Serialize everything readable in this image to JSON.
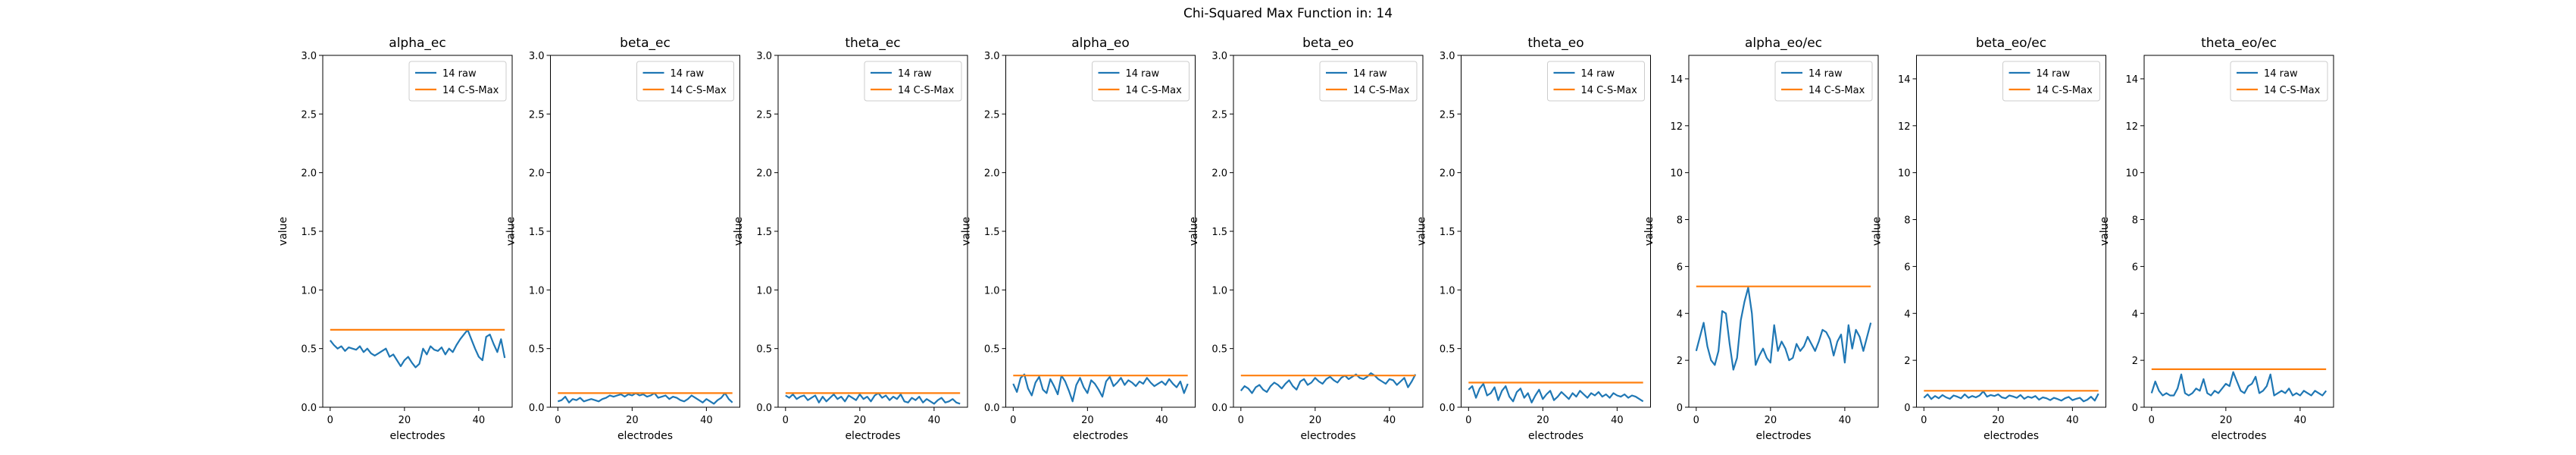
{
  "suptitle": "Chi-Squared Max Function in: 14",
  "colors": {
    "raw": "#1f77b4",
    "max": "#ff7f0e"
  },
  "chart_data": [
    {
      "type": "line",
      "title": "alpha_ec",
      "xlabel": "electrodes",
      "ylabel": "value",
      "xlim": [
        -2,
        49
      ],
      "ylim": [
        0,
        3.0
      ],
      "xticks": [
        0,
        20,
        40
      ],
      "yticks": [
        0.0,
        0.5,
        1.0,
        1.5,
        2.0,
        2.5,
        3.0
      ],
      "ytick_labels": [
        "0.0",
        "0.5",
        "1.0",
        "1.5",
        "2.0",
        "2.5",
        "3.0"
      ],
      "legend": "upper right",
      "series": [
        {
          "name": "14 raw",
          "y": [
            0.57,
            0.53,
            0.5,
            0.52,
            0.48,
            0.51,
            0.5,
            0.49,
            0.52,
            0.47,
            0.5,
            0.46,
            0.44,
            0.46,
            0.48,
            0.5,
            0.43,
            0.45,
            0.4,
            0.35,
            0.4,
            0.43,
            0.38,
            0.34,
            0.37,
            0.5,
            0.45,
            0.52,
            0.49,
            0.48,
            0.51,
            0.45,
            0.5,
            0.47,
            0.53,
            0.58,
            0.62,
            0.66,
            0.58,
            0.5,
            0.43,
            0.4,
            0.6,
            0.62,
            0.54,
            0.47,
            0.58,
            0.42
          ]
        },
        {
          "name": "14 C-S-Max",
          "x": [
            0,
            47
          ],
          "y": [
            0.66,
            0.66
          ]
        }
      ]
    },
    {
      "type": "line",
      "title": "beta_ec",
      "xlabel": "electrodes",
      "ylabel": "value",
      "xlim": [
        -2,
        49
      ],
      "ylim": [
        0,
        3.0
      ],
      "xticks": [
        0,
        20,
        40
      ],
      "yticks": [
        0.0,
        0.5,
        1.0,
        1.5,
        2.0,
        2.5,
        3.0
      ],
      "ytick_labels": [
        "0.0",
        "0.5",
        "1.0",
        "1.5",
        "2.0",
        "2.5",
        "3.0"
      ],
      "legend": "upper right",
      "series": [
        {
          "name": "14 raw",
          "y": [
            0.05,
            0.06,
            0.09,
            0.04,
            0.07,
            0.06,
            0.08,
            0.05,
            0.06,
            0.07,
            0.06,
            0.05,
            0.07,
            0.08,
            0.1,
            0.09,
            0.1,
            0.11,
            0.09,
            0.11,
            0.1,
            0.12,
            0.1,
            0.11,
            0.09,
            0.1,
            0.12,
            0.08,
            0.09,
            0.1,
            0.07,
            0.09,
            0.08,
            0.06,
            0.05,
            0.07,
            0.1,
            0.08,
            0.06,
            0.04,
            0.07,
            0.05,
            0.03,
            0.06,
            0.08,
            0.12,
            0.07,
            0.04
          ]
        },
        {
          "name": "14 C-S-Max",
          "x": [
            0,
            47
          ],
          "y": [
            0.12,
            0.12
          ]
        }
      ]
    },
    {
      "type": "line",
      "title": "theta_ec",
      "xlabel": "electrodes",
      "ylabel": "value",
      "xlim": [
        -2,
        49
      ],
      "ylim": [
        0,
        3.0
      ],
      "xticks": [
        0,
        20,
        40
      ],
      "yticks": [
        0.0,
        0.5,
        1.0,
        1.5,
        2.0,
        2.5,
        3.0
      ],
      "ytick_labels": [
        "0.0",
        "0.5",
        "1.0",
        "1.5",
        "2.0",
        "2.5",
        "3.0"
      ],
      "legend": "upper right",
      "series": [
        {
          "name": "14 raw",
          "y": [
            0.1,
            0.08,
            0.11,
            0.07,
            0.09,
            0.1,
            0.06,
            0.08,
            0.1,
            0.04,
            0.09,
            0.05,
            0.08,
            0.11,
            0.07,
            0.09,
            0.05,
            0.1,
            0.08,
            0.06,
            0.11,
            0.07,
            0.09,
            0.05,
            0.1,
            0.12,
            0.08,
            0.1,
            0.06,
            0.09,
            0.07,
            0.11,
            0.05,
            0.04,
            0.08,
            0.06,
            0.09,
            0.04,
            0.07,
            0.05,
            0.03,
            0.06,
            0.08,
            0.04,
            0.05,
            0.07,
            0.04,
            0.03
          ]
        },
        {
          "name": "14 C-S-Max",
          "x": [
            0,
            47
          ],
          "y": [
            0.12,
            0.12
          ]
        }
      ]
    },
    {
      "type": "line",
      "title": "alpha_eo",
      "xlabel": "electrodes",
      "ylabel": "value",
      "xlim": [
        -2,
        49
      ],
      "ylim": [
        0,
        3.0
      ],
      "xticks": [
        0,
        20,
        40
      ],
      "yticks": [
        0.0,
        0.5,
        1.0,
        1.5,
        2.0,
        2.5,
        3.0
      ],
      "ytick_labels": [
        "0.0",
        "0.5",
        "1.0",
        "1.5",
        "2.0",
        "2.5",
        "3.0"
      ],
      "legend": "upper right",
      "series": [
        {
          "name": "14 raw",
          "y": [
            0.2,
            0.13,
            0.25,
            0.28,
            0.16,
            0.1,
            0.21,
            0.26,
            0.15,
            0.12,
            0.24,
            0.18,
            0.11,
            0.27,
            0.22,
            0.14,
            0.05,
            0.19,
            0.25,
            0.17,
            0.12,
            0.23,
            0.2,
            0.15,
            0.09,
            0.22,
            0.26,
            0.18,
            0.21,
            0.25,
            0.19,
            0.23,
            0.21,
            0.18,
            0.22,
            0.2,
            0.25,
            0.21,
            0.18,
            0.2,
            0.22,
            0.19,
            0.24,
            0.2,
            0.17,
            0.22,
            0.12,
            0.2
          ]
        },
        {
          "name": "14 C-S-Max",
          "x": [
            0,
            47
          ],
          "y": [
            0.27,
            0.27
          ]
        }
      ]
    },
    {
      "type": "line",
      "title": "beta_eo",
      "xlabel": "electrodes",
      "ylabel": "value",
      "xlim": [
        -2,
        49
      ],
      "ylim": [
        0,
        3.0
      ],
      "xticks": [
        0,
        20,
        40
      ],
      "yticks": [
        0.0,
        0.5,
        1.0,
        1.5,
        2.0,
        2.5,
        3.0
      ],
      "ytick_labels": [
        "0.0",
        "0.5",
        "1.0",
        "1.5",
        "2.0",
        "2.5",
        "3.0"
      ],
      "legend": "upper right",
      "series": [
        {
          "name": "14 raw",
          "y": [
            0.14,
            0.18,
            0.16,
            0.12,
            0.17,
            0.19,
            0.15,
            0.13,
            0.18,
            0.21,
            0.19,
            0.16,
            0.2,
            0.23,
            0.18,
            0.15,
            0.22,
            0.24,
            0.19,
            0.21,
            0.25,
            0.22,
            0.2,
            0.24,
            0.26,
            0.23,
            0.21,
            0.25,
            0.27,
            0.24,
            0.26,
            0.28,
            0.25,
            0.24,
            0.26,
            0.29,
            0.27,
            0.24,
            0.22,
            0.2,
            0.24,
            0.23,
            0.19,
            0.22,
            0.25,
            0.17,
            0.22,
            0.28
          ]
        },
        {
          "name": "14 C-S-Max",
          "x": [
            0,
            47
          ],
          "y": [
            0.27,
            0.27
          ]
        }
      ]
    },
    {
      "type": "line",
      "title": "theta_eo",
      "xlabel": "electrodes",
      "ylabel": "value",
      "xlim": [
        -2,
        49
      ],
      "ylim": [
        0,
        3.0
      ],
      "xticks": [
        0,
        20,
        40
      ],
      "yticks": [
        0.0,
        0.5,
        1.0,
        1.5,
        2.0,
        2.5,
        3.0
      ],
      "ytick_labels": [
        "0.0",
        "0.5",
        "1.0",
        "1.5",
        "2.0",
        "2.5",
        "3.0"
      ],
      "legend": "upper right",
      "series": [
        {
          "name": "14 raw",
          "y": [
            0.15,
            0.18,
            0.08,
            0.16,
            0.2,
            0.1,
            0.12,
            0.17,
            0.06,
            0.14,
            0.18,
            0.09,
            0.05,
            0.13,
            0.16,
            0.08,
            0.12,
            0.04,
            0.1,
            0.15,
            0.07,
            0.11,
            0.14,
            0.06,
            0.09,
            0.13,
            0.1,
            0.07,
            0.12,
            0.09,
            0.14,
            0.11,
            0.08,
            0.12,
            0.1,
            0.13,
            0.09,
            0.11,
            0.08,
            0.12,
            0.1,
            0.09,
            0.11,
            0.08,
            0.1,
            0.09,
            0.07,
            0.05
          ]
        },
        {
          "name": "14 C-S-Max",
          "x": [
            0,
            47
          ],
          "y": [
            0.21,
            0.21
          ]
        }
      ]
    },
    {
      "type": "line",
      "title": "alpha_eo/ec",
      "xlabel": "electrodes",
      "ylabel": "value",
      "xlim": [
        -2,
        49
      ],
      "ylim": [
        0,
        15
      ],
      "xticks": [
        0,
        20,
        40
      ],
      "yticks": [
        0,
        2,
        4,
        6,
        8,
        10,
        12,
        14
      ],
      "ytick_labels": [
        "0",
        "2",
        "4",
        "6",
        "8",
        "10",
        "12",
        "14"
      ],
      "legend": "upper right",
      "series": [
        {
          "name": "14 raw",
          "y": [
            2.4,
            3.0,
            3.6,
            2.6,
            2.0,
            1.8,
            2.4,
            4.1,
            4.0,
            2.7,
            1.6,
            2.1,
            3.7,
            4.5,
            5.1,
            4.0,
            1.8,
            2.2,
            2.5,
            2.1,
            1.9,
            3.5,
            2.4,
            2.8,
            2.5,
            2.0,
            2.1,
            2.7,
            2.4,
            2.6,
            3.0,
            2.7,
            2.4,
            2.8,
            3.3,
            3.2,
            2.9,
            2.2,
            2.8,
            3.1,
            1.9,
            3.5,
            2.5,
            3.3,
            3.0,
            2.4,
            3.0,
            3.6
          ]
        },
        {
          "name": "14 C-S-Max",
          "x": [
            0,
            47
          ],
          "y": [
            5.15,
            5.15
          ]
        }
      ]
    },
    {
      "type": "line",
      "title": "beta_eo/ec",
      "xlabel": "electrodes",
      "ylabel": "value",
      "xlim": [
        -2,
        49
      ],
      "ylim": [
        0,
        15
      ],
      "xticks": [
        0,
        20,
        40
      ],
      "yticks": [
        0,
        2,
        4,
        6,
        8,
        10,
        12,
        14
      ],
      "ytick_labels": [
        "0",
        "2",
        "4",
        "6",
        "8",
        "10",
        "12",
        "14"
      ],
      "legend": "upper right",
      "series": [
        {
          "name": "14 raw",
          "y": [
            0.4,
            0.55,
            0.35,
            0.48,
            0.38,
            0.52,
            0.42,
            0.36,
            0.5,
            0.45,
            0.38,
            0.55,
            0.4,
            0.48,
            0.42,
            0.5,
            0.68,
            0.45,
            0.52,
            0.48,
            0.55,
            0.42,
            0.38,
            0.5,
            0.46,
            0.4,
            0.52,
            0.36,
            0.45,
            0.4,
            0.48,
            0.32,
            0.42,
            0.38,
            0.3,
            0.4,
            0.35,
            0.28,
            0.38,
            0.44,
            0.3,
            0.36,
            0.4,
            0.25,
            0.32,
            0.45,
            0.28,
            0.58
          ]
        },
        {
          "name": "14 C-S-Max",
          "x": [
            0,
            47
          ],
          "y": [
            0.7,
            0.7
          ]
        }
      ]
    },
    {
      "type": "line",
      "title": "theta_eo/ec",
      "xlabel": "electrodes",
      "ylabel": "value",
      "xlim": [
        -2,
        49
      ],
      "ylim": [
        0,
        15
      ],
      "xticks": [
        0,
        20,
        40
      ],
      "yticks": [
        0,
        2,
        4,
        6,
        8,
        10,
        12,
        14
      ],
      "ytick_labels": [
        "0",
        "2",
        "4",
        "6",
        "8",
        "10",
        "12",
        "14"
      ],
      "legend": "upper right",
      "series": [
        {
          "name": "14 raw",
          "y": [
            0.6,
            1.1,
            0.7,
            0.5,
            0.6,
            0.5,
            0.5,
            0.8,
            1.4,
            0.6,
            0.5,
            0.6,
            0.8,
            0.7,
            1.2,
            0.6,
            0.5,
            0.7,
            0.6,
            0.8,
            1.0,
            0.9,
            1.5,
            1.1,
            0.7,
            0.6,
            0.9,
            1.0,
            1.3,
            0.6,
            0.7,
            0.9,
            1.4,
            0.5,
            0.6,
            0.7,
            0.6,
            0.8,
            0.5,
            0.6,
            0.5,
            0.7,
            0.6,
            0.5,
            0.7,
            0.6,
            0.5,
            0.7
          ]
        },
        {
          "name": "14 C-S-Max",
          "x": [
            0,
            47
          ],
          "y": [
            1.62,
            1.62
          ]
        }
      ]
    }
  ]
}
